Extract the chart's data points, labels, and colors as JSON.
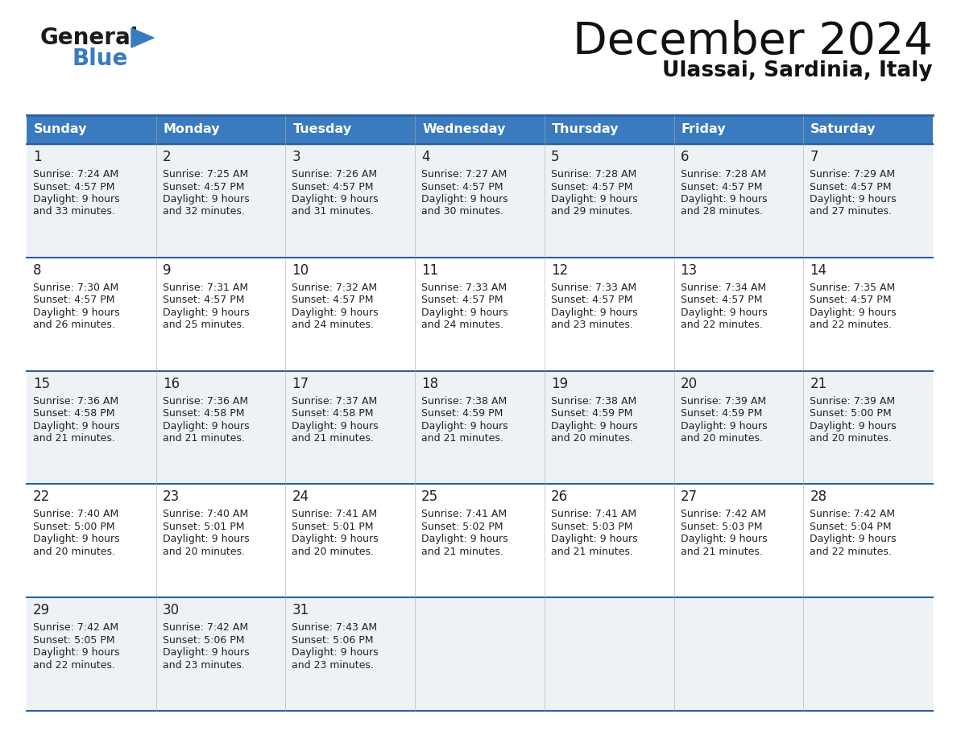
{
  "title": "December 2024",
  "subtitle": "Ulassai, Sardinia, Italy",
  "days_of_week": [
    "Sunday",
    "Monday",
    "Tuesday",
    "Wednesday",
    "Thursday",
    "Friday",
    "Saturday"
  ],
  "header_bg": "#3a7bbf",
  "header_text": "#ffffff",
  "row_bg_light": "#eef2f7",
  "row_bg_white": "#ffffff",
  "border_color": "#2e5f9e",
  "day_num_color": "#222222",
  "cell_text_color": "#222222",
  "title_color": "#111111",
  "subtitle_color": "#111111",
  "calendar_data": [
    [
      {
        "day": 1,
        "sunrise": "7:24 AM",
        "sunset": "4:57 PM",
        "daylight_mins": 33
      },
      {
        "day": 2,
        "sunrise": "7:25 AM",
        "sunset": "4:57 PM",
        "daylight_mins": 32
      },
      {
        "day": 3,
        "sunrise": "7:26 AM",
        "sunset": "4:57 PM",
        "daylight_mins": 31
      },
      {
        "day": 4,
        "sunrise": "7:27 AM",
        "sunset": "4:57 PM",
        "daylight_mins": 30
      },
      {
        "day": 5,
        "sunrise": "7:28 AM",
        "sunset": "4:57 PM",
        "daylight_mins": 29
      },
      {
        "day": 6,
        "sunrise": "7:28 AM",
        "sunset": "4:57 PM",
        "daylight_mins": 28
      },
      {
        "day": 7,
        "sunrise": "7:29 AM",
        "sunset": "4:57 PM",
        "daylight_mins": 27
      }
    ],
    [
      {
        "day": 8,
        "sunrise": "7:30 AM",
        "sunset": "4:57 PM",
        "daylight_mins": 26
      },
      {
        "day": 9,
        "sunrise": "7:31 AM",
        "sunset": "4:57 PM",
        "daylight_mins": 25
      },
      {
        "day": 10,
        "sunrise": "7:32 AM",
        "sunset": "4:57 PM",
        "daylight_mins": 24
      },
      {
        "day": 11,
        "sunrise": "7:33 AM",
        "sunset": "4:57 PM",
        "daylight_mins": 24
      },
      {
        "day": 12,
        "sunrise": "7:33 AM",
        "sunset": "4:57 PM",
        "daylight_mins": 23
      },
      {
        "day": 13,
        "sunrise": "7:34 AM",
        "sunset": "4:57 PM",
        "daylight_mins": 22
      },
      {
        "day": 14,
        "sunrise": "7:35 AM",
        "sunset": "4:57 PM",
        "daylight_mins": 22
      }
    ],
    [
      {
        "day": 15,
        "sunrise": "7:36 AM",
        "sunset": "4:58 PM",
        "daylight_mins": 21
      },
      {
        "day": 16,
        "sunrise": "7:36 AM",
        "sunset": "4:58 PM",
        "daylight_mins": 21
      },
      {
        "day": 17,
        "sunrise": "7:37 AM",
        "sunset": "4:58 PM",
        "daylight_mins": 21
      },
      {
        "day": 18,
        "sunrise": "7:38 AM",
        "sunset": "4:59 PM",
        "daylight_mins": 21
      },
      {
        "day": 19,
        "sunrise": "7:38 AM",
        "sunset": "4:59 PM",
        "daylight_mins": 20
      },
      {
        "day": 20,
        "sunrise": "7:39 AM",
        "sunset": "4:59 PM",
        "daylight_mins": 20
      },
      {
        "day": 21,
        "sunrise": "7:39 AM",
        "sunset": "5:00 PM",
        "daylight_mins": 20
      }
    ],
    [
      {
        "day": 22,
        "sunrise": "7:40 AM",
        "sunset": "5:00 PM",
        "daylight_mins": 20
      },
      {
        "day": 23,
        "sunrise": "7:40 AM",
        "sunset": "5:01 PM",
        "daylight_mins": 20
      },
      {
        "day": 24,
        "sunrise": "7:41 AM",
        "sunset": "5:01 PM",
        "daylight_mins": 20
      },
      {
        "day": 25,
        "sunrise": "7:41 AM",
        "sunset": "5:02 PM",
        "daylight_mins": 21
      },
      {
        "day": 26,
        "sunrise": "7:41 AM",
        "sunset": "5:03 PM",
        "daylight_mins": 21
      },
      {
        "day": 27,
        "sunrise": "7:42 AM",
        "sunset": "5:03 PM",
        "daylight_mins": 21
      },
      {
        "day": 28,
        "sunrise": "7:42 AM",
        "sunset": "5:04 PM",
        "daylight_mins": 22
      }
    ],
    [
      {
        "day": 29,
        "sunrise": "7:42 AM",
        "sunset": "5:05 PM",
        "daylight_mins": 22
      },
      {
        "day": 30,
        "sunrise": "7:42 AM",
        "sunset": "5:06 PM",
        "daylight_mins": 23
      },
      {
        "day": 31,
        "sunrise": "7:43 AM",
        "sunset": "5:06 PM",
        "daylight_mins": 23
      },
      null,
      null,
      null,
      null
    ]
  ]
}
